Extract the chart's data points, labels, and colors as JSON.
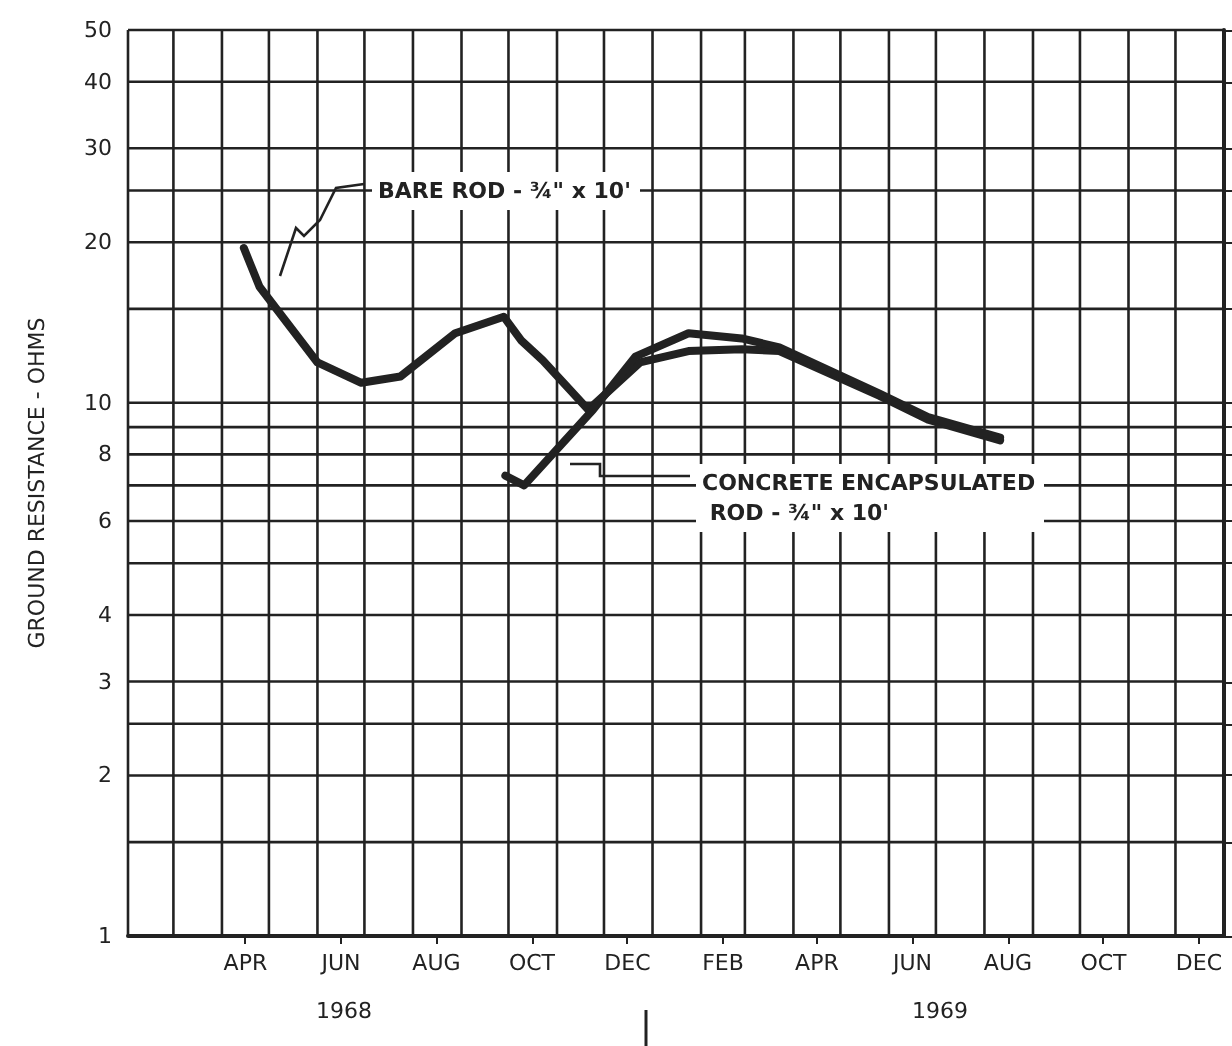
{
  "chart_data": {
    "type": "line",
    "ylabel": "GROUND RESISTANCE - OHMS",
    "annotations": [
      "1968",
      "1969"
    ],
    "log": "y",
    "grid": true,
    "marker": "none",
    "line_style": "solid",
    "xlim": [
      "1968-02-01",
      "1970-01-01"
    ],
    "xticks": [
      {
        "value": "1968-02-01",
        "label": null
      },
      {
        "value": "1968-03-01",
        "label": null
      },
      {
        "value": "1968-04-01",
        "label": null
      },
      {
        "value": "1968-04-16",
        "label": "APR"
      },
      {
        "value": "1968-05-01",
        "label": null
      },
      {
        "value": "1968-06-01",
        "label": null
      },
      {
        "value": "1968-06-16",
        "label": "JUN"
      },
      {
        "value": "1968-07-01",
        "label": null
      },
      {
        "value": "1968-08-01",
        "label": null
      },
      {
        "value": "1968-08-16",
        "label": "AUG"
      },
      {
        "value": "1968-09-01",
        "label": null
      },
      {
        "value": "1968-10-01",
        "label": null
      },
      {
        "value": "1968-10-16",
        "label": "OCT"
      },
      {
        "value": "1968-11-01",
        "label": null
      },
      {
        "value": "1968-12-01",
        "label": null
      },
      {
        "value": "1968-12-16",
        "label": "DEC"
      },
      {
        "value": "1969-01-01",
        "label": null
      },
      {
        "value": "1969-02-01",
        "label": null
      },
      {
        "value": "1969-02-15",
        "label": "FEB"
      },
      {
        "value": "1969-03-01",
        "label": null
      },
      {
        "value": "1969-04-01",
        "label": null
      },
      {
        "value": "1969-04-16",
        "label": "APR"
      },
      {
        "value": "1969-05-01",
        "label": null
      },
      {
        "value": "1969-06-01",
        "label": null
      },
      {
        "value": "1969-06-16",
        "label": "JUN"
      },
      {
        "value": "1969-07-01",
        "label": null
      },
      {
        "value": "1969-08-01",
        "label": null
      },
      {
        "value": "1969-08-16",
        "label": "AUG"
      },
      {
        "value": "1969-09-01",
        "label": null
      },
      {
        "value": "1969-10-01",
        "label": null
      },
      {
        "value": "1969-10-16",
        "label": "OCT"
      },
      {
        "value": "1969-11-01",
        "label": null
      },
      {
        "value": "1969-12-01",
        "label": null
      },
      {
        "value": "1969-12-16",
        "label": "DEC"
      },
      {
        "value": "1970-01-01",
        "label": null
      }
    ],
    "ylim": [
      1,
      50
    ],
    "yticks": [
      1,
      {
        "value": 1.5,
        "label": null
      },
      2,
      {
        "value": 2.5,
        "label": null
      },
      3,
      4,
      {
        "value": 5,
        "label": null
      },
      6,
      {
        "value": 7,
        "label": null
      },
      8,
      {
        "value": 9,
        "label": null
      },
      10,
      {
        "value": 15,
        "label": null
      },
      20,
      {
        "value": 25,
        "label": null
      },
      30,
      40,
      50
    ],
    "series": [
      {
        "name": "BARE ROD - ¾\" x 10'",
        "color": "#222222",
        "x": [
          "1968-04-15",
          "1968-04-25",
          "1968-06-01",
          "1968-06-29",
          "1968-07-24",
          "1968-08-28",
          "1968-09-28",
          "1968-10-09",
          "1968-10-23",
          "1968-11-21",
          "1968-12-24",
          "1969-01-24",
          "1969-02-27",
          "1969-03-23",
          "1969-05-26",
          "1969-06-26",
          "1969-08-11"
        ],
        "values": [
          19.5,
          16.5,
          11.9,
          10.9,
          11.2,
          13.5,
          14.5,
          13.1,
          12,
          9.7,
          11.9,
          12.5,
          12.6,
          12.5,
          10.3,
          9.3,
          8.5
        ]
      },
      {
        "name": "CONCRETE ENCAPSULATED ROD - ¾\" x 10'",
        "color": "#222222",
        "x": [
          "1968-09-29",
          "1968-10-11",
          "1968-11-24",
          "1968-12-21",
          "1969-01-24",
          "1969-02-27",
          "1969-03-23",
          "1969-05-26",
          "1969-06-26",
          "1969-08-11"
        ],
        "values": [
          7.3,
          7,
          9.7,
          12.2,
          13.5,
          13.2,
          12.7,
          10.4,
          9.4,
          8.6
        ]
      }
    ]
  }
}
